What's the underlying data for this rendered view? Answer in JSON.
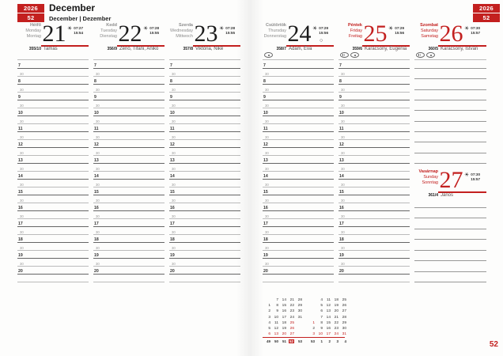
{
  "page": {
    "year": "2026",
    "week": "52",
    "month_title": "December",
    "month_sub": "December | Dezember",
    "footer_week": "52"
  },
  "colors": {
    "red": "#c3201f"
  },
  "schedule": {
    "hours": [
      "7",
      "8",
      "9",
      "10",
      "11",
      "12",
      "13",
      "14",
      "15",
      "16",
      "17",
      "18",
      "19",
      "20"
    ],
    "half_label": "30"
  },
  "days": [
    {
      "names": [
        "Hétfő",
        "Monday",
        "Montag"
      ],
      "num": "21",
      "sunrise": "07:27",
      "sunset": "15:54",
      "doy": "355/10",
      "nameday": "Tamás",
      "holiday": false,
      "moon": "",
      "markers": []
    },
    {
      "names": [
        "Kedd",
        "Tuesday",
        "Dienstag"
      ],
      "num": "22",
      "sunrise": "07:28",
      "sunset": "15:55",
      "doy": "356/9",
      "nameday": "Zénó, Tifani, Anikó",
      "holiday": false,
      "moon": "",
      "markers": []
    },
    {
      "names": [
        "Szerda",
        "Wednesday",
        "Mittwoch"
      ],
      "num": "23",
      "sunrise": "07:28",
      "sunset": "15:55",
      "doy": "357/8",
      "nameday": "Viktória, Niké",
      "holiday": false,
      "moon": "",
      "markers": []
    },
    {
      "names": [
        "Csütörtök",
        "Thursday",
        "Donnerstag"
      ],
      "num": "24",
      "sunrise": "07:29",
      "sunset": "15:56",
      "doy": "358/7",
      "nameday": "Ádám, Éva",
      "holiday": false,
      "moon": "○",
      "markers": [
        "dot"
      ]
    },
    {
      "names": [
        "Péntek",
        "Friday",
        "Freitag"
      ],
      "num": "25",
      "sunrise": "07:29",
      "sunset": "15:56",
      "doy": "359/6",
      "nameday": "Karácsony, Eugénia",
      "holiday": true,
      "moon": "",
      "markers": [
        "striped",
        "dot"
      ]
    },
    {
      "names": [
        "Szombat",
        "Saturday",
        "Samstag"
      ],
      "num": "26",
      "sunrise": "07:30",
      "sunset": "15:57",
      "doy": "360/5",
      "nameday": "Karácsony, István",
      "holiday": true,
      "moon": "",
      "markers": [
        "striped",
        "dot"
      ]
    },
    {
      "names": [
        "Vasárnap",
        "Sunday",
        "Sonntag"
      ],
      "num": "27",
      "sunrise": "07:30",
      "sunset": "15:57",
      "doy": "361/4",
      "nameday": "János",
      "holiday": true,
      "moon": "",
      "markers": []
    }
  ],
  "mini_calendar": {
    "months": [
      {
        "name": "december",
        "columns": [
          [
            "",
            "1",
            "2",
            "3",
            "4",
            "5",
            "6"
          ],
          [
            "7",
            "8",
            "9",
            "10",
            "11",
            "12",
            "13"
          ],
          [
            "14",
            "15",
            "16",
            "17",
            "18",
            "19",
            "20"
          ],
          [
            "21",
            "22",
            "23",
            "24",
            "25",
            "26",
            "27"
          ],
          [
            "28",
            "29",
            "30",
            "31",
            "",
            "",
            ""
          ]
        ],
        "red_days": [
          "25",
          "26"
        ],
        "weeks": [
          "49",
          "50",
          "51",
          "52",
          "53"
        ],
        "current_week": "52"
      },
      {
        "name": "january",
        "columns": [
          [
            "",
            "",
            "",
            "",
            "1",
            "2",
            "3"
          ],
          [
            "4",
            "5",
            "6",
            "7",
            "8",
            "9",
            "10"
          ],
          [
            "11",
            "12",
            "13",
            "14",
            "15",
            "16",
            "17"
          ],
          [
            "18",
            "19",
            "20",
            "21",
            "22",
            "23",
            "24"
          ],
          [
            "25",
            "26",
            "27",
            "28",
            "29",
            "30",
            "31"
          ]
        ],
        "red_days": [
          "1"
        ],
        "weeks": [
          "53",
          "1",
          "2",
          "3",
          "4"
        ],
        "current_week": ""
      }
    ]
  }
}
